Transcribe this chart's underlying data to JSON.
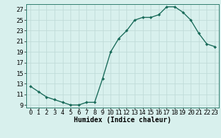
{
  "x": [
    0,
    1,
    2,
    3,
    4,
    5,
    6,
    7,
    8,
    9,
    10,
    11,
    12,
    13,
    14,
    15,
    16,
    17,
    18,
    19,
    20,
    21,
    22,
    23
  ],
  "y": [
    12.5,
    11.5,
    10.5,
    10.0,
    9.5,
    9.0,
    9.0,
    9.5,
    9.5,
    14.0,
    19.0,
    21.5,
    23.0,
    25.0,
    25.5,
    25.5,
    26.0,
    27.5,
    27.5,
    26.5,
    25.0,
    22.5,
    20.5,
    20.0
  ],
  "line_color": "#1a6b5a",
  "marker": "D",
  "markersize": 2.0,
  "linewidth": 1.0,
  "background_color": "#d8f0ed",
  "grid_color": "#c0dbd8",
  "xlabel": "Humidex (Indice chaleur)",
  "xlabel_fontsize": 7,
  "tick_fontsize": 6.5,
  "xlim": [
    -0.5,
    23.5
  ],
  "ylim": [
    8.5,
    28.0
  ],
  "yticks": [
    9,
    11,
    13,
    15,
    17,
    19,
    21,
    23,
    25,
    27
  ],
  "xtick_labels": [
    "0",
    "1",
    "2",
    "3",
    "4",
    "5",
    "6",
    "7",
    "8",
    "9",
    "10",
    "11",
    "12",
    "13",
    "14",
    "15",
    "16",
    "17",
    "18",
    "19",
    "20",
    "21",
    "22",
    "23"
  ]
}
